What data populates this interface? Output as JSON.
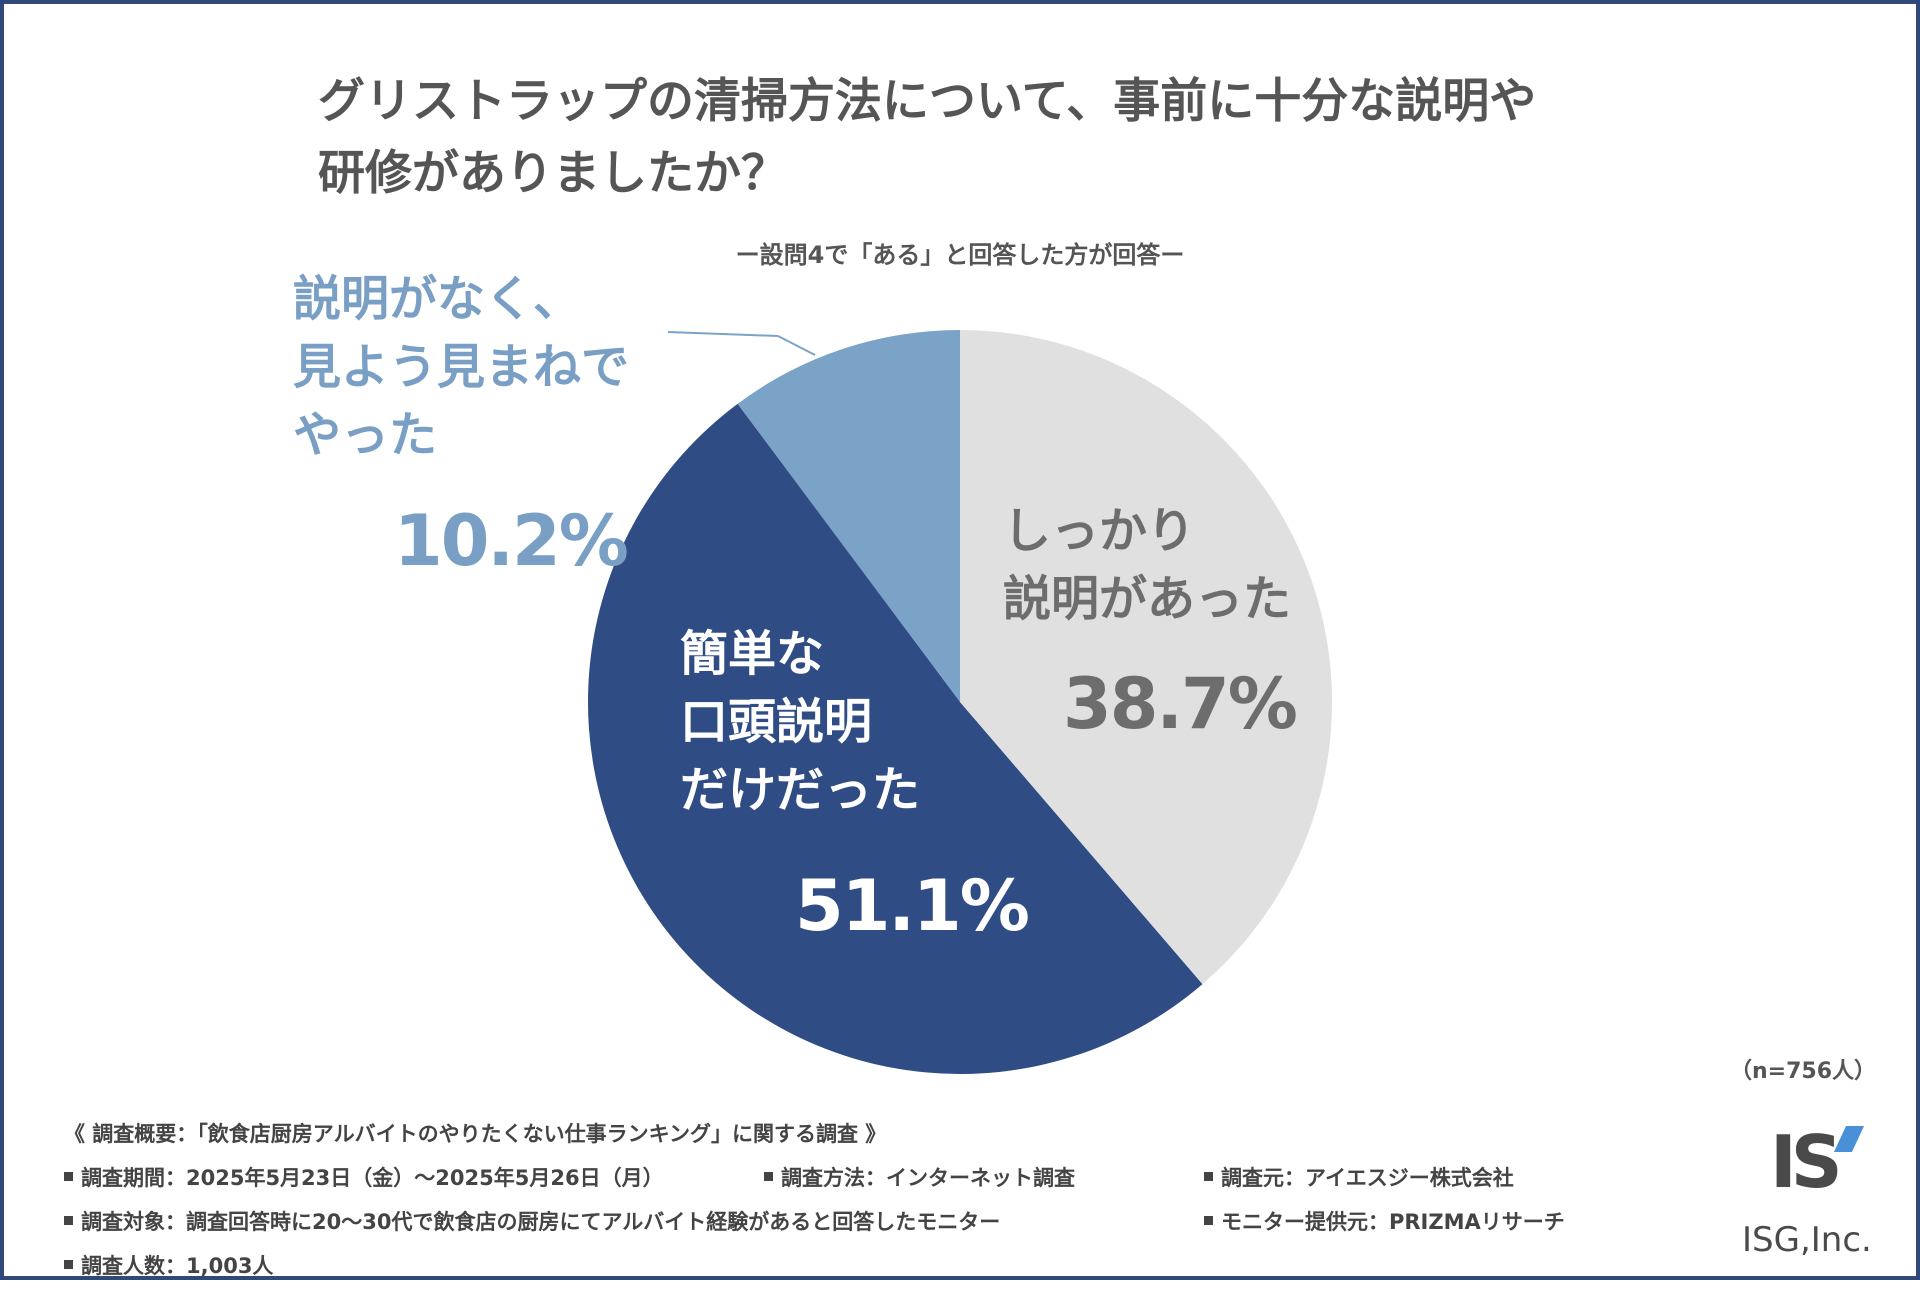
{
  "chart_data": {
    "type": "pie",
    "title": "グリストラップの清掃方法について、事前に十分な説明や研修がありましたか？",
    "title_lines": [
      "グリストラップの清掃方法について、事前に十分な説明や",
      "研修がありましたか？"
    ],
    "subtitle": "ー設問4で「ある」と回答した方が回答ー",
    "start_angle_deg": 0,
    "direction": "clockwise",
    "slices": [
      {
        "label_lines": [
          "しっかり",
          "説明があった"
        ],
        "value": 38.7,
        "value_label": "38.7%",
        "color": "#e0e0e0",
        "label_color": "#6d6d6d"
      },
      {
        "label_lines": [
          "簡単な",
          "口頭説明",
          "だけだった"
        ],
        "value": 51.1,
        "value_label": "51.1%",
        "color": "#2f4c85",
        "label_color": "#ffffff"
      },
      {
        "label_lines": [
          "説明がなく、",
          "見よう見まねで",
          "やった"
        ],
        "value": 10.2,
        "value_label": "10.2%",
        "color": "#7aa3c7",
        "label_color": "#7a9fc4"
      }
    ],
    "sample_note": "（n=756人）"
  },
  "footer": {
    "heading": "《 調査概要：「飲食店厨房アルバイトのやりたくない仕事ランキング」に関する調査 》",
    "period": "調査期間：2025年5月23日（金）～2025年5月26日（月）",
    "method": "調査方法：インターネット調査",
    "source": "調査元：アイエスジー株式会社",
    "target": "調査対象：調査回答時に20～30代で飲食店の厨房にてアルバイト経験があると回答したモニター",
    "provider": "モニター提供元：PRIZMAリサーチ",
    "count": "調査人数：1,003人"
  },
  "logo": {
    "mark": "IS",
    "text": "ISG,Inc."
  },
  "colors": {
    "frame": "#2f4a7a",
    "text": "#555555"
  }
}
